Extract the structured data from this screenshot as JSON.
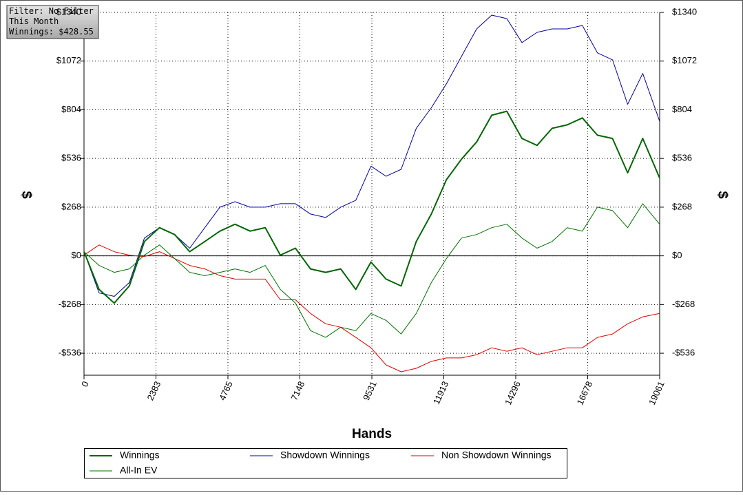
{
  "chart_data": {
    "type": "line",
    "annotations": [
      "Filter: No Filter",
      "This Month",
      "Winnings: $428.55"
    ],
    "xlabel": "Hands",
    "ylabel": "$",
    "y2label": "$",
    "x": [
      0,
      500,
      1000,
      1500,
      2000,
      2500,
      3000,
      3500,
      4000,
      4500,
      5000,
      5500,
      6000,
      6500,
      7000,
      7500,
      8000,
      8500,
      9000,
      9500,
      10000,
      10500,
      11000,
      11500,
      12000,
      12500,
      13000,
      13500,
      14000,
      14500,
      15000,
      15500,
      16000,
      16500,
      17000,
      17500,
      18000,
      18500,
      19061
    ],
    "series": [
      {
        "name": "Winnings",
        "color": "#006400",
        "line_width": 2,
        "values": [
          23,
          -185,
          -260,
          -166,
          79,
          155,
          117,
          23,
          79,
          136,
          174,
          136,
          155,
          4,
          42,
          -72,
          -91,
          -72,
          -185,
          -34,
          -128,
          -166,
          79,
          230,
          419,
          532,
          627,
          774,
          796,
          646,
          608,
          702,
          721,
          759,
          664,
          646,
          457,
          646,
          428
        ]
      },
      {
        "name": "Showdown Winnings",
        "color": "#0000a0",
        "line_width": 1,
        "values": [
          23,
          -204,
          -223,
          -147,
          98,
          155,
          117,
          42,
          155,
          268,
          298,
          268,
          268,
          287,
          287,
          230,
          211,
          268,
          306,
          494,
          438,
          476,
          702,
          815,
          947,
          1098,
          1249,
          1325,
          1306,
          1174,
          1230,
          1249,
          1249,
          1268,
          1117,
          1079,
          834,
          1004,
          740
        ]
      },
      {
        "name": "Non Showdown Winnings",
        "color": "#e00000",
        "line_width": 1,
        "values": [
          4,
          60,
          23,
          4,
          -4,
          23,
          -15,
          -53,
          -72,
          -109,
          -128,
          -128,
          -128,
          -242,
          -242,
          -317,
          -374,
          -393,
          -449,
          -506,
          -600,
          -638,
          -619,
          -581,
          -562,
          -562,
          -544,
          -506,
          -525,
          -506,
          -544,
          -525,
          -506,
          -506,
          -449,
          -430,
          -374,
          -336,
          -317
        ]
      },
      {
        "name": "All-In EV",
        "color": "#007000",
        "line_width": 1,
        "values": [
          23,
          -53,
          -91,
          -72,
          4,
          60,
          -15,
          -91,
          -109,
          -91,
          -72,
          -91,
          -53,
          -185,
          -260,
          -412,
          -449,
          -393,
          -412,
          -317,
          -355,
          -430,
          -317,
          -147,
          -15,
          98,
          117,
          155,
          174,
          98,
          42,
          79,
          155,
          136,
          268,
          249,
          155,
          287,
          174
        ]
      }
    ],
    "xlim": [
      0,
      19061
    ],
    "xticks": [
      0,
      2383,
      4765,
      7148,
      9531,
      11913,
      14296,
      16678,
      19061
    ],
    "ylim": [
      -657,
      1340
    ],
    "yticks": [
      {
        "value": -536,
        "label": "-$536"
      },
      {
        "value": -268,
        "label": "-$268"
      },
      {
        "value": 0,
        "label": "$0"
      },
      {
        "value": 268,
        "label": "$268"
      },
      {
        "value": 536,
        "label": "$536"
      },
      {
        "value": 804,
        "label": "$804"
      },
      {
        "value": 1072,
        "label": "$1072"
      },
      {
        "value": 1340,
        "label": "$1340"
      }
    ],
    "y2lim": [
      -657,
      1340
    ],
    "y2ticks": [
      {
        "value": -536,
        "label": "-$536"
      },
      {
        "value": -268,
        "label": "-$268"
      },
      {
        "value": 0,
        "label": "$0"
      },
      {
        "value": 268,
        "label": "$268"
      },
      {
        "value": 536,
        "label": "$536"
      },
      {
        "value": 804,
        "label": "$804"
      },
      {
        "value": 1072,
        "label": "$1072"
      },
      {
        "value": 1340,
        "label": "$1340"
      }
    ],
    "grid": true
  }
}
